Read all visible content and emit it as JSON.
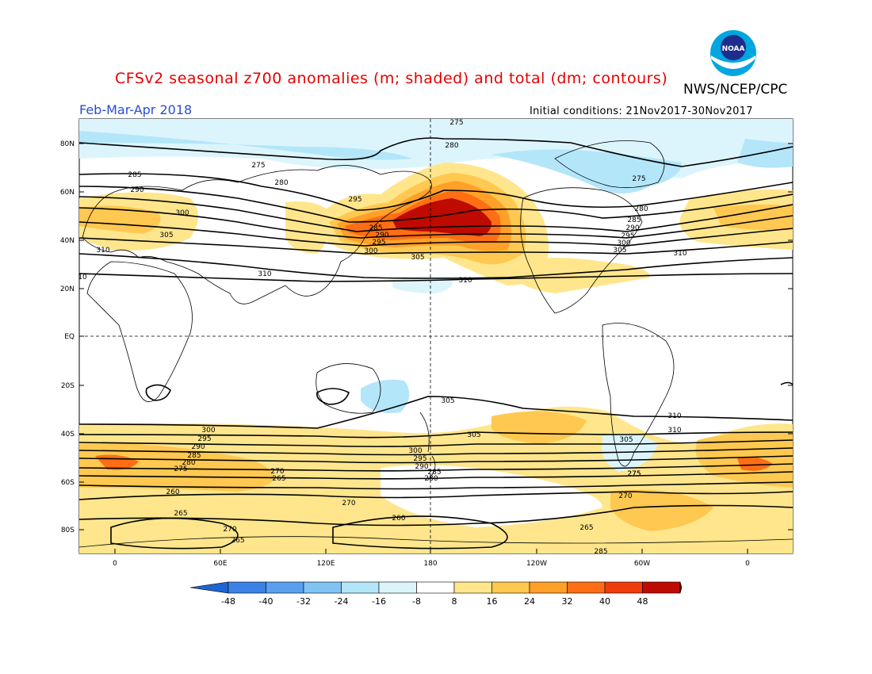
{
  "header": {
    "title": "CFSv2 seasonal z700 anomalies (m; shaded) and total (dm; contours)",
    "org": "NWS/NCEP/CPC",
    "season": "Feb-Mar-Apr 2018",
    "initial_conditions": "Initial conditions: 21Nov2017-30Nov2017",
    "logo_text": "NOAA"
  },
  "map": {
    "lat_labels": [
      "80N",
      "60N",
      "40N",
      "20N",
      "EQ",
      "20S",
      "40S",
      "60S",
      "80S"
    ],
    "lon_labels": [
      "0",
      "60E",
      "120E",
      "180",
      "120W",
      "60W",
      "0"
    ],
    "contour_labels": [
      "275",
      "280",
      "275",
      "285",
      "290",
      "295",
      "300",
      "305",
      "310",
      "280",
      "285",
      "290",
      "295",
      "300",
      "305",
      "275",
      "280",
      "285",
      "290",
      "295",
      "300",
      "305",
      "310",
      "10",
      "310",
      "310",
      "305",
      "300",
      "295",
      "290",
      "285",
      "280",
      "275",
      "270",
      "265",
      "260",
      "265",
      "270",
      "310",
      "305",
      "300",
      "295",
      "290",
      "285",
      "280",
      "275",
      "270",
      "265",
      "260",
      "270",
      "265",
      "275",
      "310",
      "305",
      "285"
    ],
    "colors": {
      "land_outline": "#000000",
      "contour": "#000000"
    }
  },
  "colorbar": {
    "labels": [
      "-48",
      "-40",
      "-32",
      "-24",
      "-16",
      "-8",
      "8",
      "16",
      "24",
      "32",
      "40",
      "48"
    ],
    "colors": [
      "#1e64d2",
      "#3c82e6",
      "#5aa0f0",
      "#82c3f5",
      "#b4e6fa",
      "#dcf5fc",
      "#ffffff",
      "#ffe68c",
      "#ffc850",
      "#ffa028",
      "#ff6e14",
      "#f03c0a",
      "#be0a00",
      "#8c0000"
    ]
  }
}
